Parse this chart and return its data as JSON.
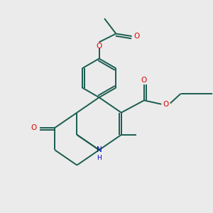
{
  "bg_color": "#ebebeb",
  "bond_color": "#1a5c50",
  "o_color": "#e00000",
  "n_color": "#0000cc",
  "lw": 1.4,
  "figsize": [
    3.0,
    3.0
  ],
  "dpi": 100,
  "xlim": [
    0,
    10
  ],
  "ylim": [
    0,
    10
  ]
}
